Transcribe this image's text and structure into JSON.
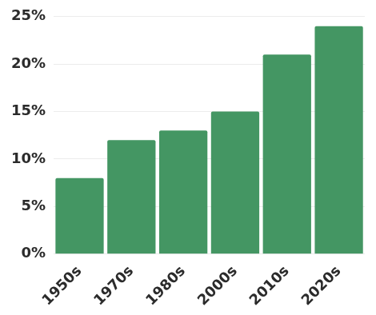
{
  "chart_data": {
    "type": "bar",
    "categories": [
      "1950s",
      "1970s",
      "1980s",
      "2000s",
      "2010s",
      "2020s"
    ],
    "values": [
      8,
      12,
      13,
      15,
      21,
      24
    ],
    "color": "#449663",
    "ylim": [
      0,
      25
    ],
    "yticks": [
      {
        "value": 0,
        "label": "0%"
      },
      {
        "value": 5,
        "label": "5%"
      },
      {
        "value": 10,
        "label": "10%"
      },
      {
        "value": 15,
        "label": "15%"
      },
      {
        "value": 20,
        "label": "20%"
      },
      {
        "value": 25,
        "label": "25%"
      }
    ],
    "grid": true
  }
}
